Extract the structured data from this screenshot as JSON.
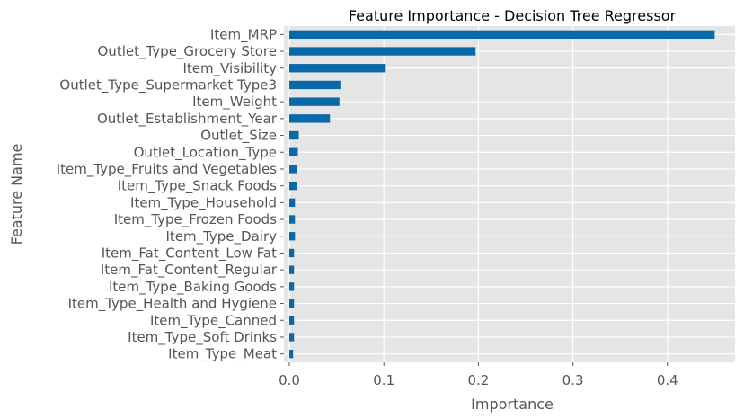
{
  "chart_data": {
    "type": "bar",
    "orientation": "horizontal",
    "title": "Feature Importance - Decision Tree Regressor",
    "xlabel": "Importance",
    "ylabel": "Feature Name",
    "xlim": [
      0.0,
      0.47
    ],
    "xticks": [
      0.0,
      0.1,
      0.2,
      0.3,
      0.4
    ],
    "xtick_labels": [
      "0.0",
      "0.1",
      "0.2",
      "0.3",
      "0.4"
    ],
    "grid": true,
    "bar_color": "#0868a8",
    "background_color": "#e5e5e5",
    "categories": [
      "Item_MRP",
      "Outlet_Type_Grocery Store",
      "Item_Visibility",
      "Outlet_Type_Supermarket Type3",
      "Item_Weight",
      "Outlet_Establishment_Year",
      "Outlet_Size",
      "Outlet_Location_Type",
      "Item_Type_Fruits and Vegetables",
      "Item_Type_Snack Foods",
      "Item_Type_Household",
      "Item_Type_Frozen Foods",
      "Item_Type_Dairy",
      "Item_Fat_Content_Low Fat",
      "Item_Fat_Content_Regular",
      "Item_Type_Baking Goods",
      "Item_Type_Health and Hygiene",
      "Item_Type_Canned",
      "Item_Type_Soft Drinks",
      "Item_Type_Meat"
    ],
    "values": [
      0.45,
      0.197,
      0.102,
      0.054,
      0.053,
      0.043,
      0.01,
      0.009,
      0.008,
      0.008,
      0.006,
      0.006,
      0.006,
      0.005,
      0.005,
      0.005,
      0.005,
      0.005,
      0.005,
      0.004
    ]
  }
}
